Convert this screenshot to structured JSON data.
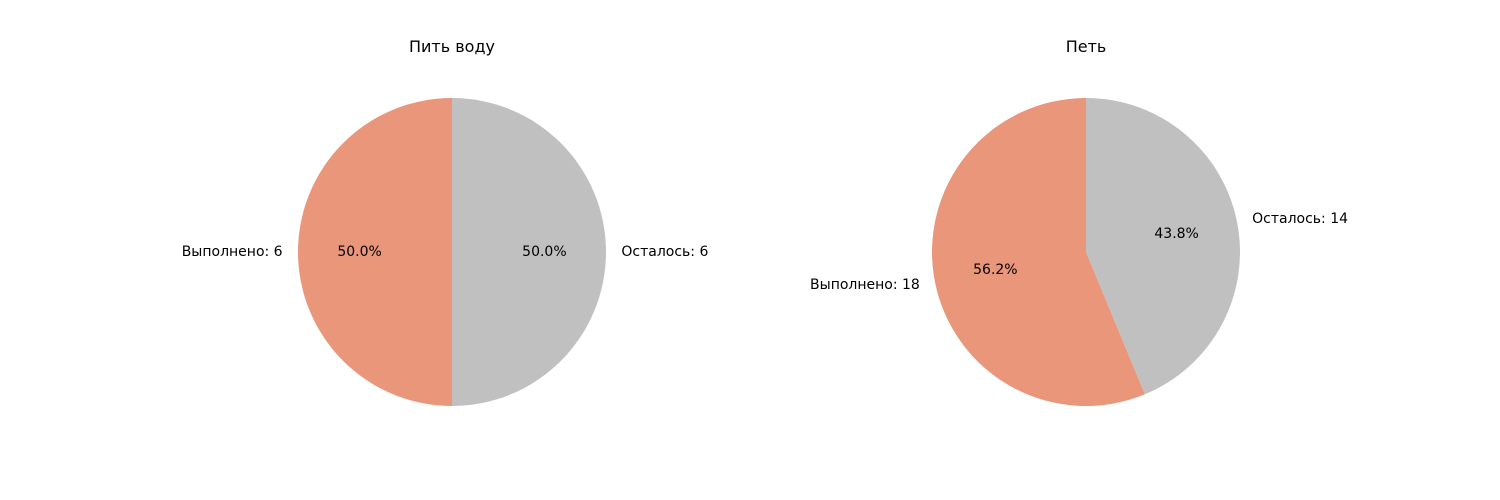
{
  "chart_data": [
    {
      "type": "pie",
      "title": "Пить воду",
      "slices": [
        {
          "label": "Выполнено: 6",
          "value": 6,
          "percent_label": "50.0%",
          "color": "#e9967a"
        },
        {
          "label": "Осталось: 6",
          "value": 6,
          "percent_label": "50.0%",
          "color": "#c0c0c0"
        }
      ],
      "start_angle_deg": 90,
      "direction": "counterclockwise"
    },
    {
      "type": "pie",
      "title": "Петь",
      "slices": [
        {
          "label": "Выполнено: 18",
          "value": 18,
          "percent_label": "56.2%",
          "color": "#e9967a"
        },
        {
          "label": "Осталось: 14",
          "value": 14,
          "percent_label": "43.8%",
          "color": "#c0c0c0"
        }
      ],
      "start_angle_deg": 90,
      "direction": "counterclockwise"
    }
  ]
}
